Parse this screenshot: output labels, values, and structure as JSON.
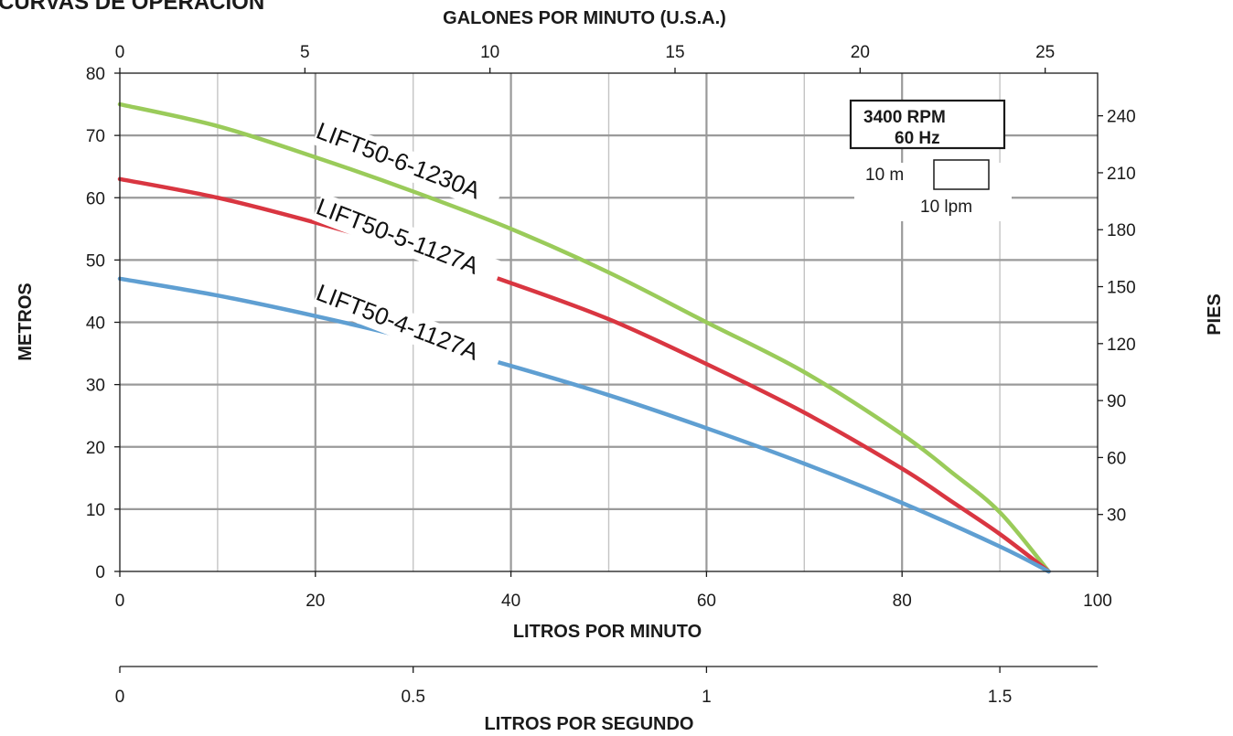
{
  "page_title": "CURVAS DE OPERACIÓN",
  "chart_data": {
    "type": "line",
    "title": "CURVAS DE OPERACIÓN",
    "xlabel": "LITROS POR MINUTO",
    "ylabel": "METROS",
    "x2label": "GALONES POR MINUTO (U.S.A.)",
    "y2label": "PIES",
    "x3label": "LITROS POR SEGUNDO",
    "xlim": [
      0,
      100
    ],
    "ylim": [
      0,
      80
    ],
    "x_ticks": [
      0,
      20,
      40,
      60,
      80,
      100
    ],
    "y_ticks": [
      0,
      10,
      20,
      30,
      40,
      50,
      60,
      70,
      80
    ],
    "gpm_ticks": [
      0,
      5,
      10,
      15,
      20,
      25
    ],
    "ft_ticks": [
      30,
      60,
      90,
      120,
      150,
      180,
      210,
      240
    ],
    "lps_ticks": [
      0,
      0.5,
      1,
      1.5
    ],
    "grid": true,
    "series": [
      {
        "name": "LIFT50-6-1230A",
        "color": "#9acb5a",
        "x": [
          0,
          10,
          20,
          30,
          40,
          50,
          60,
          70,
          80,
          85,
          90,
          95
        ],
        "y": [
          75,
          71.5,
          66.5,
          61,
          55,
          48,
          40,
          32,
          22,
          16,
          9.5,
          0
        ]
      },
      {
        "name": "LIFT50-5-1127A",
        "color": "#d93641",
        "x": [
          0,
          10,
          20,
          30,
          40,
          50,
          60,
          70,
          80,
          85,
          90,
          95
        ],
        "y": [
          63,
          60,
          56,
          51.5,
          46.3,
          40.5,
          33.3,
          25.5,
          16.5,
          11.3,
          6,
          0
        ]
      },
      {
        "name": "LIFT50-4-1127A",
        "color": "#5f9fd2",
        "x": [
          0,
          10,
          20,
          30,
          40,
          50,
          60,
          70,
          80,
          90,
          95
        ],
        "y": [
          47,
          44.3,
          41,
          37.3,
          33,
          28.3,
          23,
          17.3,
          11,
          4,
          0
        ]
      }
    ],
    "legend_box": {
      "rpm": "3400 RPM",
      "hz": "60 Hz",
      "scale_m": "10 m",
      "scale_lpm": "10 lpm"
    }
  }
}
